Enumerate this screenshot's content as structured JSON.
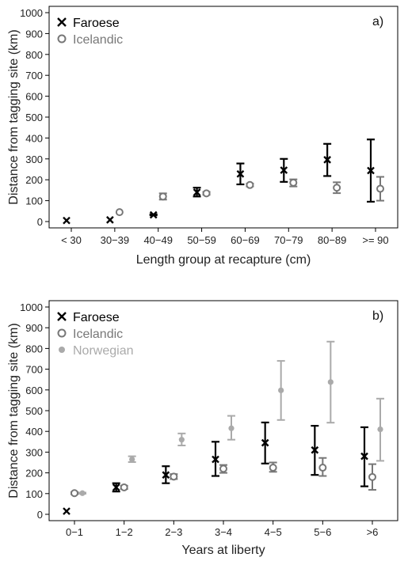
{
  "chart_data": [
    {
      "type": "scatter",
      "panel_label": "a)",
      "xlabel": "Length group at recapture (cm)",
      "ylabel": "Distance from tagging site (km)",
      "ylim": [
        0,
        1000
      ],
      "yticks": [
        0,
        100,
        200,
        300,
        400,
        500,
        600,
        700,
        800,
        900,
        1000
      ],
      "categories": [
        "< 30",
        "30−39",
        "40−49",
        "50−59",
        "60−69",
        "70−79",
        "80−89",
        ">= 90"
      ],
      "legend_position": "top-left",
      "series": [
        {
          "name": "Faroese",
          "marker": "x",
          "color": "#000000",
          "values": [
            5,
            8,
            32,
            140,
            228,
            246,
            296,
            244
          ],
          "lower": [
            5,
            8,
            30,
            120,
            178,
            190,
            218,
            95
          ],
          "upper": [
            5,
            8,
            35,
            162,
            278,
            300,
            372,
            393
          ]
        },
        {
          "name": "Icelandic",
          "marker": "circle",
          "color": "#777777",
          "values": [
            null,
            45,
            120,
            135,
            175,
            186,
            162,
            157
          ],
          "lower": [
            null,
            45,
            105,
            128,
            168,
            168,
            136,
            100
          ],
          "upper": [
            null,
            45,
            135,
            142,
            182,
            202,
            188,
            214
          ]
        }
      ]
    },
    {
      "type": "scatter",
      "panel_label": "b)",
      "xlabel": "Years at liberty",
      "ylabel": "Distance from tagging site (km)",
      "ylim": [
        0,
        1000
      ],
      "yticks": [
        0,
        100,
        200,
        300,
        400,
        500,
        600,
        700,
        800,
        900,
        1000
      ],
      "categories": [
        "0−1",
        "1−2",
        "2−3",
        "3−4",
        "4−5",
        "5−6",
        ">6"
      ],
      "legend_position": "top-left",
      "series": [
        {
          "name": "Faroese",
          "marker": "x",
          "color": "#000000",
          "values": [
            15,
            130,
            190,
            265,
            345,
            310,
            280
          ],
          "lower": [
            15,
            110,
            150,
            185,
            245,
            190,
            135
          ],
          "upper": [
            15,
            150,
            232,
            350,
            443,
            427,
            420
          ]
        },
        {
          "name": "Icelandic",
          "marker": "circle",
          "color": "#777777",
          "values": [
            102,
            130,
            182,
            220,
            225,
            225,
            180
          ],
          "lower": [
            97,
            122,
            170,
            200,
            205,
            185,
            118
          ],
          "upper": [
            107,
            138,
            194,
            238,
            250,
            272,
            242
          ]
        },
        {
          "name": "Norwegian",
          "marker": "dot",
          "color": "#aaaaaa",
          "values": [
            102,
            265,
            360,
            415,
            598,
            638,
            410
          ],
          "lower": [
            99,
            252,
            332,
            360,
            455,
            442,
            258
          ],
          "upper": [
            105,
            280,
            390,
            475,
            740,
            833,
            558
          ]
        }
      ]
    }
  ]
}
